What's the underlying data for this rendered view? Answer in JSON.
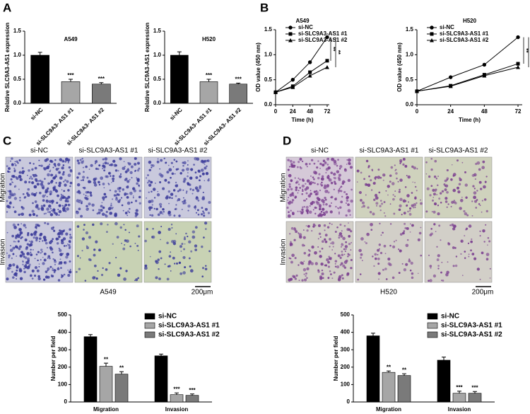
{
  "panel_labels": [
    "A",
    "B",
    "C",
    "D"
  ],
  "micrographs": [
    {
      "columns": [
        "si-NC",
        "si-SLC9A3-AS1 #1",
        "si-SLC9A3-AS1 #2"
      ],
      "rows": [
        "Migration",
        "Invasion"
      ],
      "cell_line": "A549",
      "scale_bar": "200μm"
    },
    {
      "columns": [
        "si-NC",
        "si-SLC9A3-AS1 #1",
        "si-SLC9A3-AS1 #2"
      ],
      "rows": [
        "Migration",
        "Invasion"
      ],
      "cell_line": "H520",
      "scale_bar": "200μm"
    }
  ],
  "chart_data": [
    {
      "type": "bar",
      "title": "A549",
      "y_label": "Relative SLC9A3-AS1 expression",
      "categories": [
        "si-NC",
        "si-SLC9A3- AS1 #1",
        "si-SLC9A3- AS1 #2"
      ],
      "values": [
        1.0,
        0.45,
        0.4
      ],
      "errors": [
        0.06,
        0.05,
        0.03
      ],
      "annotations": [
        null,
        "***",
        "***"
      ],
      "colors": [
        "#000000",
        "#a6a6a6",
        "#7a7a7a"
      ],
      "ylim": [
        0,
        1.5
      ],
      "yticks": [
        {
          "value": 0,
          "label": "0.0"
        },
        0.5,
        {
          "value": 1,
          "label": "1.0"
        },
        1.5
      ]
    },
    {
      "type": "bar",
      "title": "H520",
      "y_label": "Relative SLC9A3-AS1 expression",
      "categories": [
        "si-NC",
        "si-SLC9A3- AS1 #1",
        "si-SLC9A3- AS1 #2"
      ],
      "values": [
        1.0,
        0.45,
        0.4
      ],
      "errors": [
        0.07,
        0.05,
        0.02
      ],
      "annotations": [
        null,
        "***",
        "***"
      ],
      "colors": [
        "#000000",
        "#a6a6a6",
        "#7a7a7a"
      ],
      "ylim": [
        0,
        1.5
      ],
      "yticks": [
        {
          "value": 0,
          "label": "0.0"
        },
        0.5,
        {
          "value": 1,
          "label": "1.0"
        },
        1.5
      ]
    },
    {
      "type": "line",
      "title": "A549",
      "x_label": "Time (h)",
      "y_label": "OD value (450 nm)",
      "x": [
        0,
        24,
        48,
        72
      ],
      "xlim": [
        0,
        75
      ],
      "xticks": [
        0,
        24,
        48,
        72
      ],
      "ylim": [
        0,
        1.5
      ],
      "yticks": [
        {
          "value": 0,
          "label": "0.0"
        },
        0.5,
        {
          "value": 1,
          "label": "1.0"
        },
        1.5
      ],
      "series": [
        {
          "name": "si-NC",
          "marker": "circle",
          "values": [
            0.25,
            0.5,
            0.85,
            1.35
          ]
        },
        {
          "name": "si-SLC9A3-AS1 #1",
          "marker": "square",
          "values": [
            0.25,
            0.37,
            0.65,
            0.88
          ]
        },
        {
          "name": "si-SLC9A3-AS1 #2",
          "marker": "triangle",
          "values": [
            0.25,
            0.35,
            0.58,
            0.75
          ]
        }
      ],
      "annotations": [
        "**",
        "**"
      ]
    },
    {
      "type": "line",
      "title": "H520",
      "x_label": "Time (h)",
      "y_label": "OD value (450 nm)",
      "x": [
        0,
        24,
        48,
        72
      ],
      "xlim": [
        0,
        75
      ],
      "xticks": [
        0,
        24,
        48,
        72
      ],
      "ylim": [
        0,
        1.5
      ],
      "yticks": [
        {
          "value": 0,
          "label": "0.0"
        },
        0.5,
        {
          "value": 1,
          "label": "1.0"
        },
        1.5
      ],
      "series": [
        {
          "name": "si-NC",
          "marker": "circle",
          "values": [
            0.27,
            0.55,
            0.8,
            1.35
          ]
        },
        {
          "name": "si-SLC9A3-AS1 #1",
          "marker": "square",
          "values": [
            0.27,
            0.38,
            0.6,
            0.82
          ]
        },
        {
          "name": "si-SLC9A3-AS1 #2",
          "marker": "triangle",
          "values": [
            0.27,
            0.37,
            0.58,
            0.75
          ]
        }
      ],
      "annotations": [
        "**",
        "**"
      ]
    },
    {
      "type": "grouped_bar",
      "y_label": "Number per field",
      "categories": [
        "Migration",
        "Invasion"
      ],
      "ylim": [
        0,
        500
      ],
      "yticks": [
        0,
        100,
        200,
        300,
        400,
        500
      ],
      "series": [
        {
          "name": "si-NC",
          "color": "#000000",
          "values": [
            375,
            265
          ],
          "errors": [
            12,
            10
          ],
          "annotations": [
            null,
            null
          ]
        },
        {
          "name": "si-SLC9A3-AS1 #1",
          "color": "#a6a6a6",
          "values": [
            205,
            42
          ],
          "errors": [
            18,
            10
          ],
          "annotations": [
            "**",
            "***"
          ]
        },
        {
          "name": "si-SLC9A3-AS1 #2",
          "color": "#7a7a7a",
          "values": [
            160,
            38
          ],
          "errors": [
            14,
            8
          ],
          "annotations": [
            "**",
            "***"
          ]
        }
      ]
    },
    {
      "type": "grouped_bar",
      "y_label": "Number per field",
      "categories": [
        "Migration",
        "Invasion"
      ],
      "ylim": [
        0,
        500
      ],
      "yticks": [
        0,
        100,
        200,
        300,
        400,
        500
      ],
      "series": [
        {
          "name": "si-NC",
          "color": "#000000",
          "values": [
            380,
            240
          ],
          "errors": [
            15,
            18
          ],
          "annotations": [
            null,
            null
          ]
        },
        {
          "name": "si-SLC9A3-AS1 #1",
          "color": "#a6a6a6",
          "values": [
            170,
            50
          ],
          "errors": [
            8,
            12
          ],
          "annotations": [
            "**",
            "***"
          ]
        },
        {
          "name": "si-SLC9A3-AS1 #2",
          "color": "#7a7a7a",
          "values": [
            152,
            50
          ],
          "errors": [
            10,
            10
          ],
          "annotations": [
            "**",
            "***"
          ]
        }
      ]
    }
  ]
}
